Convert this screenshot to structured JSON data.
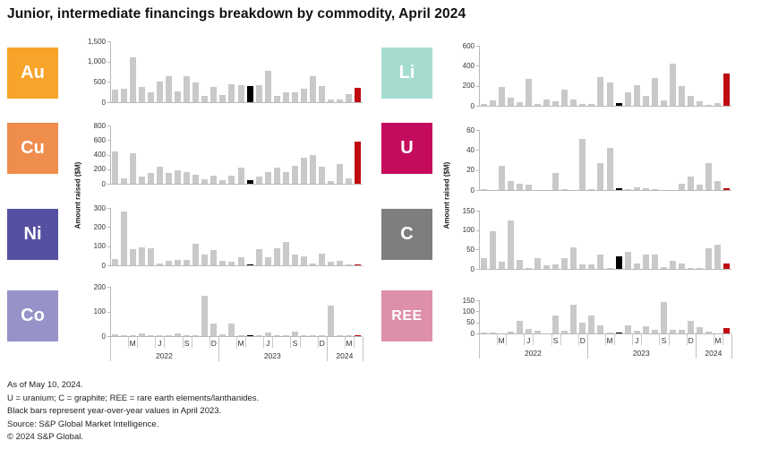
{
  "title": "Junior, intermediate financings breakdown by commodity, April 2024",
  "ylabel": "Amount raised ($M)",
  "colors": {
    "bar": "#c9c9c9",
    "black_bar": "#000000",
    "red_bar": "#c00c11",
    "axis": "#b9b9b9",
    "text": "#333333"
  },
  "black_index": 15,
  "red_index": 27,
  "axis_x": {
    "month_labels": [
      "M",
      "J",
      "S",
      "D",
      "M",
      "J",
      "S",
      "D",
      "M"
    ],
    "month_slots": [
      2,
      5,
      8,
      11,
      14,
      17,
      20,
      23,
      26
    ],
    "year_labels": [
      "2022",
      "2023",
      "2024"
    ],
    "year_boundaries": [
      0,
      12,
      24,
      28
    ],
    "year_centers": [
      6,
      18,
      26
    ]
  },
  "chart_data": [
    {
      "type": "bar",
      "id": "au",
      "label": "Au",
      "tile_color": "#F8A42A",
      "x": "monthly, Jan 2022 - Apr 2024",
      "ylim": [
        0,
        1500
      ],
      "ytick_labels": [
        "1,500",
        "1,000",
        "500",
        "0"
      ],
      "values": [
        300,
        320,
        1100,
        370,
        240,
        500,
        630,
        270,
        630,
        490,
        150,
        380,
        180,
        440,
        420,
        400,
        420,
        780,
        160,
        240,
        250,
        330,
        650,
        390,
        70,
        60,
        200,
        360
      ]
    },
    {
      "type": "bar",
      "id": "cu",
      "label": "Cu",
      "tile_color": "#EF8D4D",
      "x": "monthly, Jan 2022 - Apr 2024",
      "ylim": [
        0,
        800
      ],
      "ytick_labels": [
        "800",
        "600",
        "400",
        "200",
        "0"
      ],
      "values": [
        440,
        80,
        420,
        100,
        150,
        240,
        150,
        180,
        160,
        120,
        60,
        110,
        50,
        115,
        220,
        50,
        100,
        160,
        220,
        155,
        250,
        360,
        390,
        240,
        40,
        265,
        70,
        580
      ]
    },
    {
      "type": "bar",
      "id": "ni",
      "label": "Ni",
      "tile_color": "#5550A1",
      "x": "monthly, Jan 2022 - Apr 2024",
      "ylim": [
        0,
        300
      ],
      "ytick_labels": [
        "300",
        "200",
        "100",
        "0"
      ],
      "values": [
        35,
        280,
        85,
        95,
        88,
        10,
        25,
        30,
        28,
        112,
        55,
        80,
        25,
        20,
        42,
        5,
        85,
        40,
        90,
        122,
        55,
        48,
        10,
        60,
        20,
        25,
        5,
        5
      ]
    },
    {
      "type": "bar",
      "id": "co",
      "label": "Co",
      "tile_color": "#9792C8",
      "x": "monthly, Jan 2022 - Apr 2024",
      "ylim": [
        0,
        200
      ],
      "ytick_labels": [
        "200",
        "100",
        "0"
      ],
      "values": [
        8,
        1,
        2,
        10,
        1,
        1,
        3,
        12,
        3,
        1,
        165,
        52,
        7,
        52,
        1,
        3,
        1,
        15,
        5,
        3,
        18,
        5,
        1,
        1,
        122,
        1,
        1,
        3
      ]
    },
    {
      "type": "bar",
      "id": "li",
      "label": "Li",
      "tile_color": "#A6DCD0",
      "x": "monthly, Jan 2022 - Apr 2024",
      "ylim": [
        0,
        600
      ],
      "ytick_labels": [
        "600",
        "400",
        "200",
        "0"
      ],
      "values": [
        15,
        50,
        190,
        85,
        40,
        270,
        15,
        60,
        45,
        165,
        60,
        20,
        20,
        285,
        235,
        30,
        135,
        205,
        100,
        275,
        55,
        420,
        200,
        95,
        45,
        10,
        25,
        325
      ]
    },
    {
      "type": "bar",
      "id": "u",
      "label": "U",
      "tile_color": "#C50B5C",
      "x": "monthly, Jan 2022 - Apr 2024",
      "ylim": [
        0,
        60
      ],
      "ytick_labels": [
        "60",
        "40",
        "20",
        "0"
      ],
      "values": [
        1,
        0,
        24,
        9,
        6,
        5,
        0,
        0,
        17,
        1,
        0,
        51,
        1,
        27,
        42,
        2,
        1,
        3,
        2,
        1,
        0,
        0,
        6,
        13,
        5,
        27,
        9,
        2
      ]
    },
    {
      "type": "bar",
      "id": "c",
      "label": "C",
      "tile_color": "#7E7E7E",
      "x": "monthly, Jan 2022 - Apr 2024",
      "ylim": [
        0,
        150
      ],
      "ytick_labels": [
        "150",
        "100",
        "50",
        "0"
      ],
      "values": [
        28,
        97,
        18,
        125,
        22,
        2,
        28,
        10,
        12,
        27,
        56,
        12,
        12,
        37,
        3,
        32,
        45,
        13,
        36,
        37,
        5,
        21,
        13,
        3,
        2,
        52,
        62,
        13
      ]
    },
    {
      "type": "bar",
      "id": "ree",
      "label": "REE",
      "tile_color": "#DD90A8",
      "x": "monthly, Jan 2022 - Apr 2024",
      "ylim": [
        0,
        150
      ],
      "ytick_labels": [
        "150",
        "100",
        "50",
        "0"
      ],
      "values": [
        5,
        2,
        0,
        8,
        55,
        20,
        12,
        0,
        80,
        12,
        130,
        50,
        80,
        37,
        2,
        5,
        35,
        13,
        33,
        18,
        140,
        17,
        15,
        57,
        27,
        8,
        0,
        25
      ]
    }
  ],
  "notes": [
    "As of May 10, 2024.",
    "U = uranium; C = graphite; REE = rare earth elements/lanthanides.",
    "Black bars represent year-over-year values in April 2023.",
    "Source: S&P Global Market Intelligence.",
    "© 2024 S&P Global."
  ]
}
